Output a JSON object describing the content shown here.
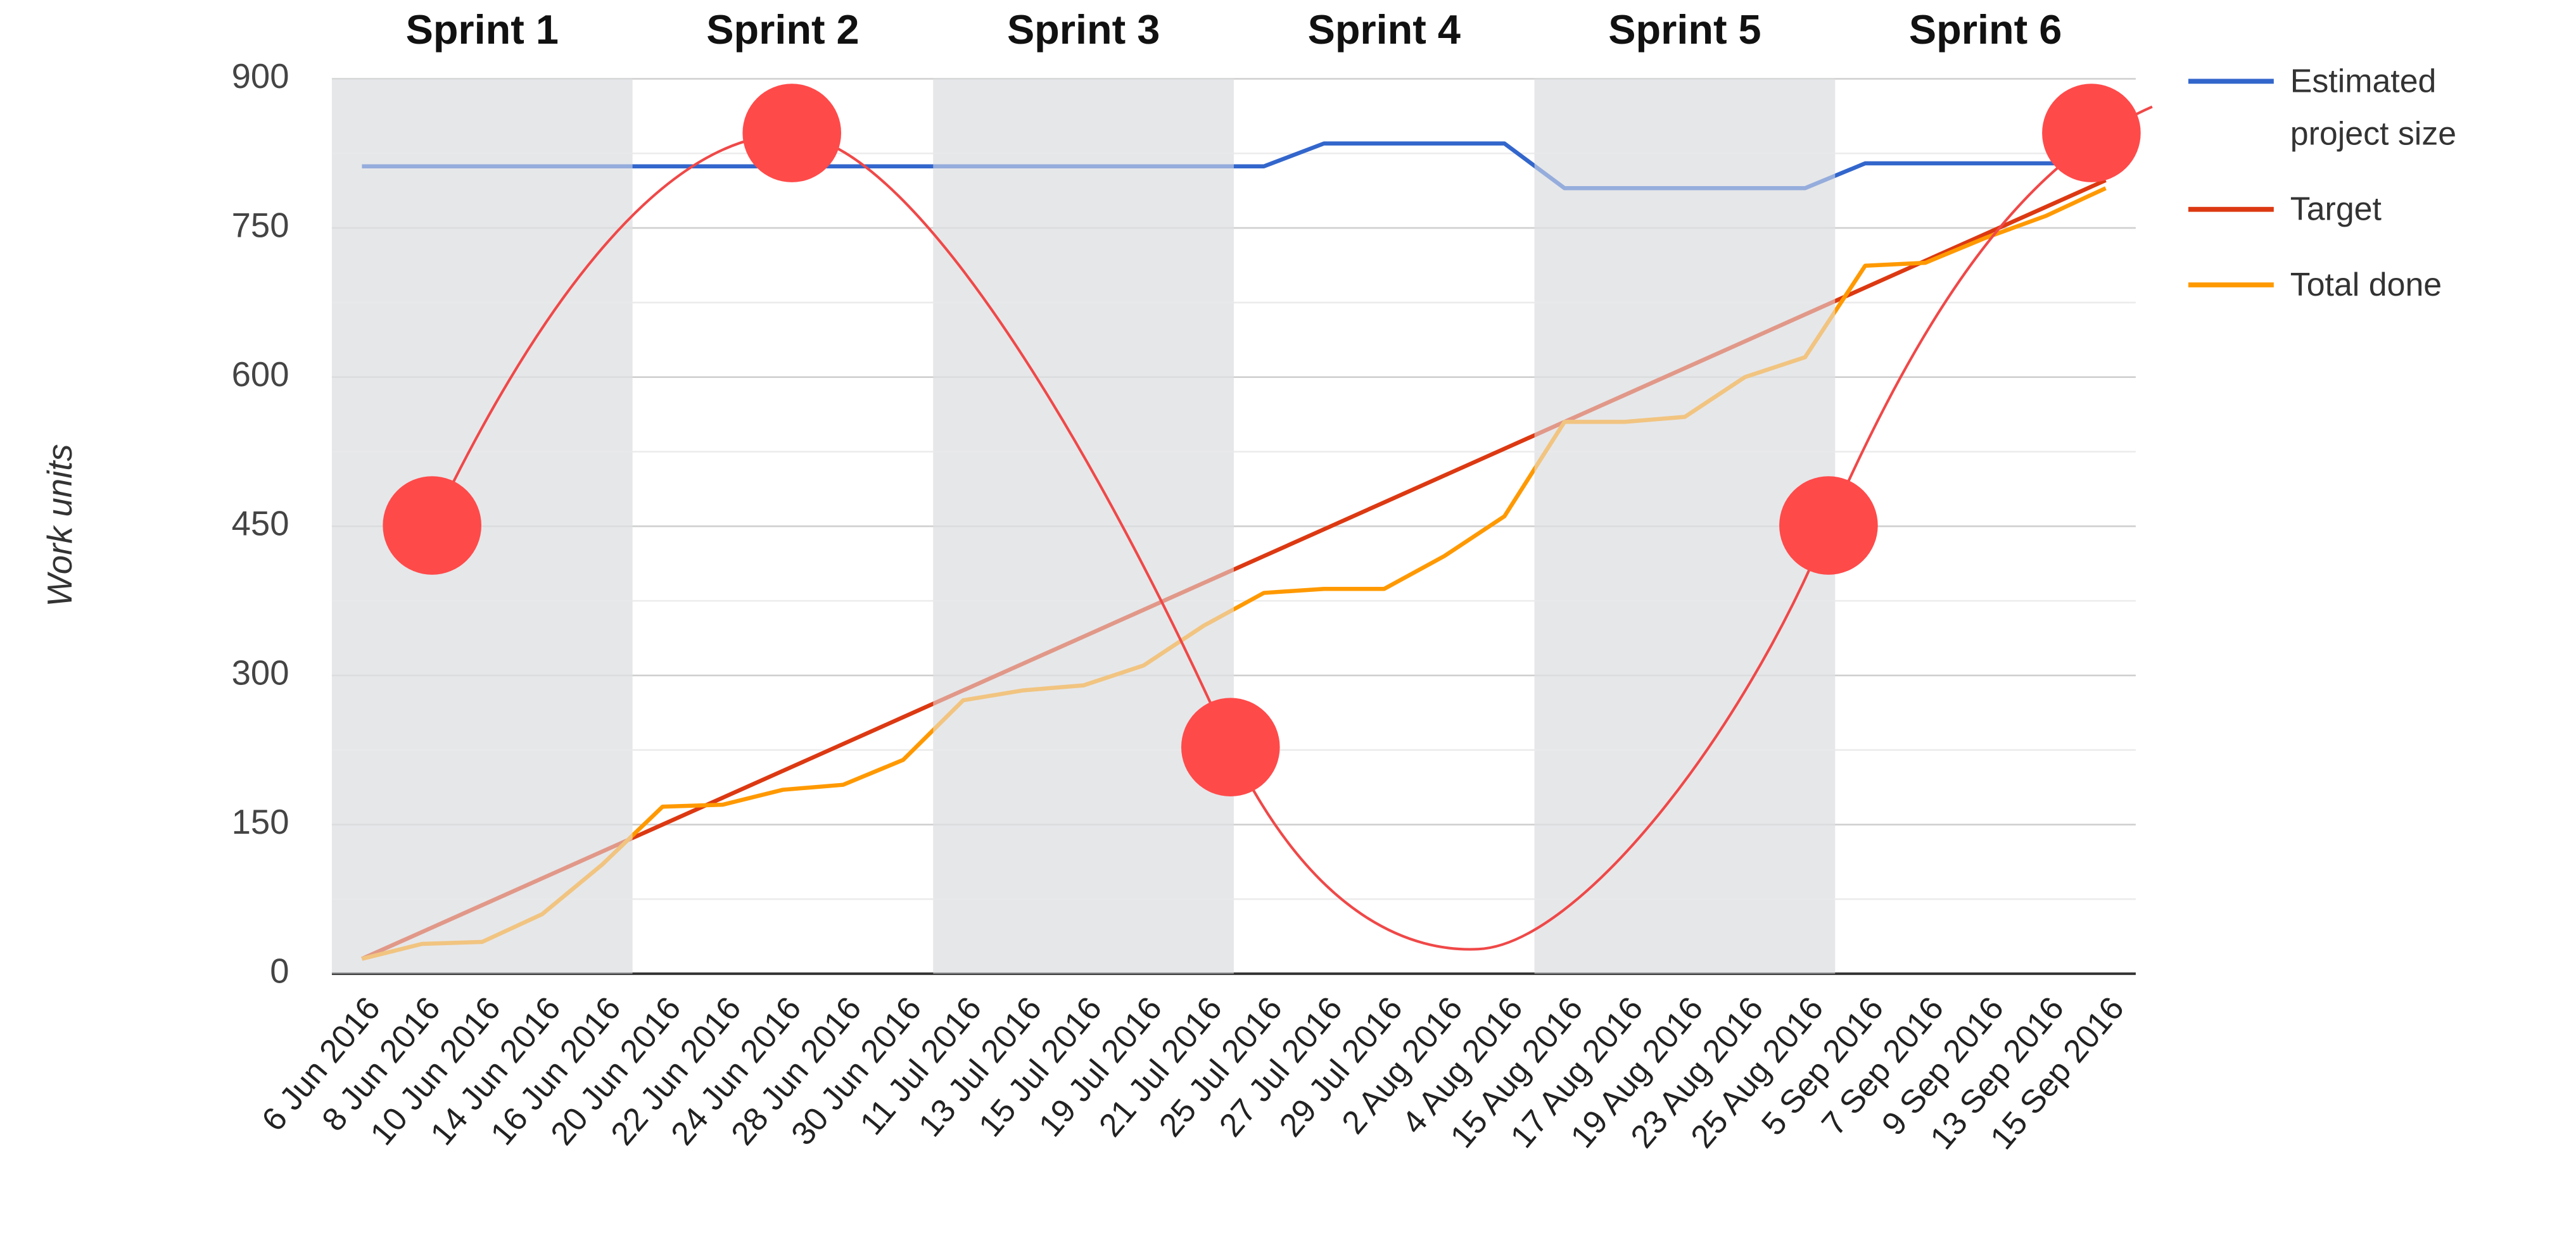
{
  "chart_data": {
    "type": "line",
    "y_label": "Work units",
    "sprints": [
      "Sprint 1",
      "Sprint 2",
      "Sprint 3",
      "Sprint 4",
      "Sprint 5",
      "Sprint 6"
    ],
    "categories": [
      "6 Jun 2016",
      "8 Jun 2016",
      "10 Jun 2016",
      "14 Jun 2016",
      "16 Jun 2016",
      "20 Jun 2016",
      "22 Jun 2016",
      "24 Jun 2016",
      "28 Jun 2016",
      "30 Jun 2016",
      "11 Jul 2016",
      "13 Jul 2016",
      "15 Jul 2016",
      "19 Jul 2016",
      "21 Jul 2016",
      "25 Jul 2016",
      "27 Jul 2016",
      "29 Jul 2016",
      "2 Aug 2016",
      "4 Aug 2016",
      "15 Aug 2016",
      "17 Aug 2016",
      "19 Aug 2016",
      "23 Aug 2016",
      "25 Aug 2016",
      "5 Sep 2016",
      "7 Sep 2016",
      "9 Sep 2016",
      "13 Sep 2016",
      "15 Sep 2016"
    ],
    "series": [
      {
        "name": "Estimated project size",
        "color": "#3366cc",
        "values": [
          812,
          812,
          812,
          812,
          812,
          812,
          812,
          812,
          812,
          812,
          812,
          812,
          812,
          812,
          812,
          812,
          835,
          835,
          835,
          835,
          790,
          790,
          790,
          790,
          790,
          815,
          815,
          815,
          815,
          815
        ]
      },
      {
        "name": "Target",
        "color": "#dc3912",
        "values": [
          15,
          42,
          69,
          96,
          123,
          150,
          177,
          204,
          231,
          258,
          285,
          312,
          339,
          366,
          393,
          420,
          447,
          474,
          501,
          528,
          555,
          582,
          609,
          636,
          663,
          690,
          717,
          744,
          771,
          798
        ]
      },
      {
        "name": "Total done",
        "color": "#ff9900",
        "values": [
          15,
          30,
          32,
          60,
          110,
          168,
          170,
          185,
          190,
          215,
          275,
          285,
          290,
          310,
          350,
          383,
          387,
          387,
          420,
          460,
          555,
          555,
          560,
          600,
          620,
          712,
          715,
          740,
          762,
          790
        ]
      }
    ],
    "ylim": [
      0,
      900
    ],
    "yticks": [
      0,
      150,
      300,
      450,
      600,
      750,
      900
    ],
    "minor_yticks": [
      75,
      225,
      375,
      525,
      675,
      825
    ],
    "grid": true,
    "legend": "right"
  }
}
